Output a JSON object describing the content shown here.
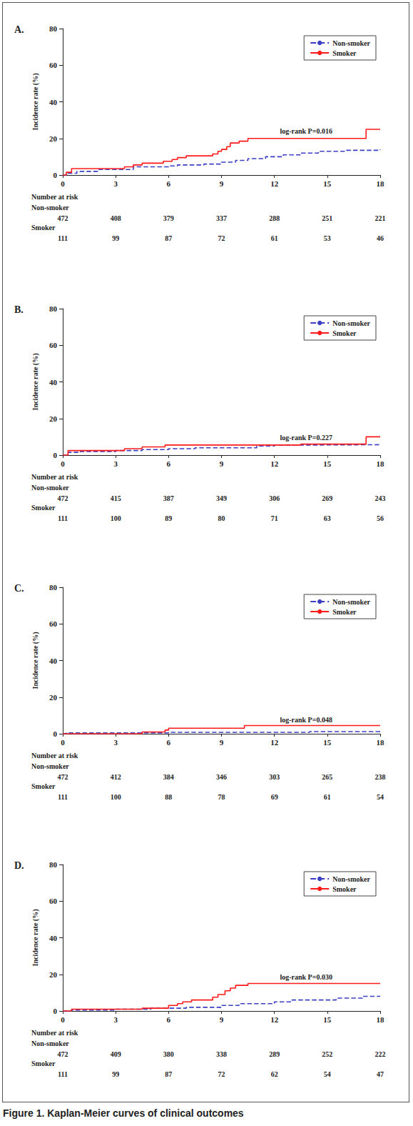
{
  "chart_data": [
    {
      "type": "line",
      "title": "A.",
      "y_label": "Incidence rate (%)",
      "annotation": "log-rank P=0.016",
      "legend": "upper right",
      "xlim": [
        0,
        18
      ],
      "xticks": [
        0,
        3,
        6,
        9,
        12,
        15,
        18
      ],
      "ylim": [
        0,
        80
      ],
      "yticks": [
        0,
        20,
        40,
        60,
        80
      ],
      "series": [
        {
          "name": "Non-smoker",
          "color": "#3a3fc4",
          "line_style": "dashed",
          "x": [
            0,
            0.3,
            0.8,
            2,
            4,
            6,
            6.5,
            8,
            9,
            9.8,
            10.5,
            11.5,
            12.5,
            13.5,
            14.5,
            16,
            18
          ],
          "values": [
            0,
            1,
            2,
            3,
            4.5,
            5,
            5.5,
            6,
            7,
            8,
            9,
            10,
            11,
            12,
            13,
            13.5,
            14
          ]
        },
        {
          "name": "Smoker",
          "color": "#ff1a1a",
          "line_style": "solid",
          "x": [
            0,
            0.2,
            0.5,
            3,
            3.5,
            4,
            4.5,
            5.7,
            6.2,
            6.5,
            7,
            8.5,
            8.8,
            9,
            9.3,
            9.5,
            10,
            10.5,
            17,
            17.2,
            18
          ],
          "values": [
            0,
            1.5,
            3.5,
            3.5,
            4.5,
            5.5,
            6.5,
            7.5,
            8.5,
            9.5,
            10.5,
            11.5,
            13,
            14,
            15.5,
            17.5,
            18.5,
            20,
            20,
            25,
            25
          ]
        }
      ],
      "number_at_risk": {
        "title": "Number at risk",
        "x": [
          0,
          3,
          6,
          9,
          12,
          15,
          18
        ],
        "rows": [
          {
            "name": "Non-smoker",
            "values": [
              472,
              408,
              379,
              337,
              288,
              251,
              221
            ]
          },
          {
            "name": "Smoker",
            "values": [
              111,
              99,
              87,
              72,
              61,
              53,
              46
            ]
          }
        ]
      }
    },
    {
      "type": "line",
      "title": "B.",
      "y_label": "Incidence rate (%)",
      "annotation": "log-rank P=0.227",
      "legend": "upper right",
      "xlim": [
        0,
        18
      ],
      "xticks": [
        0,
        3,
        6,
        9,
        12,
        15,
        18
      ],
      "ylim": [
        0,
        80
      ],
      "yticks": [
        0,
        20,
        40,
        60,
        80
      ],
      "series": [
        {
          "name": "Non-smoker",
          "color": "#3a3fc4",
          "line_style": "dashed",
          "x": [
            0,
            0.3,
            1,
            3,
            4.5,
            6,
            7.5,
            11,
            12,
            14,
            18
          ],
          "values": [
            0,
            1.5,
            2,
            2.5,
            3,
            3.5,
            4,
            5,
            5.5,
            5.7,
            5.8
          ]
        },
        {
          "name": "Smoker",
          "color": "#ff1a1a",
          "line_style": "solid",
          "x": [
            0,
            0.3,
            3,
            3.5,
            4.5,
            5.8,
            13.5,
            17.2,
            18
          ],
          "values": [
            0,
            2.5,
            2.5,
            3.5,
            4.5,
            5.5,
            6,
            10,
            10
          ]
        }
      ],
      "number_at_risk": {
        "title": "Number at risk",
        "x": [
          0,
          3,
          6,
          9,
          12,
          15,
          18
        ],
        "rows": [
          {
            "name": "Non-smoker",
            "values": [
              472,
              415,
              387,
              349,
              306,
              269,
              243
            ]
          },
          {
            "name": "Smoker",
            "values": [
              111,
              100,
              89,
              80,
              71,
              63,
              56
            ]
          }
        ]
      }
    },
    {
      "type": "line",
      "title": "C.",
      "y_label": "Incidence rate (%)",
      "annotation": "log-rank P=0.048",
      "legend": "upper right",
      "xlim": [
        0,
        18
      ],
      "xticks": [
        0,
        3,
        6,
        9,
        12,
        15,
        18
      ],
      "ylim": [
        0,
        80
      ],
      "yticks": [
        0,
        20,
        40,
        60,
        80
      ],
      "series": [
        {
          "name": "Non-smoker",
          "color": "#3a3fc4",
          "line_style": "dashed",
          "x": [
            0,
            0.2,
            6,
            14,
            18
          ],
          "values": [
            0,
            0.5,
            0.8,
            1.2,
            1.3
          ]
        },
        {
          "name": "Smoker",
          "color": "#ff1a1a",
          "line_style": "solid",
          "x": [
            0,
            4.5,
            5.8,
            6,
            10.3,
            18
          ],
          "values": [
            0,
            1,
            2,
            3,
            4.5,
            4.5
          ]
        }
      ],
      "number_at_risk": {
        "title": "Number at risk",
        "x": [
          0,
          3,
          6,
          9,
          12,
          15,
          18
        ],
        "rows": [
          {
            "name": "Non-smoker",
            "values": [
              472,
              412,
              384,
              346,
              303,
              265,
              238
            ]
          },
          {
            "name": "Smoker",
            "values": [
              111,
              100,
              88,
              78,
              69,
              61,
              54
            ]
          }
        ]
      }
    },
    {
      "type": "line",
      "title": "D.",
      "y_label": "Incidence rate (%)",
      "annotation": "log-rank P=0.030",
      "legend": "upper right",
      "xlim": [
        0,
        18
      ],
      "xticks": [
        0,
        3,
        6,
        9,
        12,
        15,
        18
      ],
      "ylim": [
        0,
        80
      ],
      "yticks": [
        0,
        20,
        40,
        60,
        80
      ],
      "series": [
        {
          "name": "Non-smoker",
          "color": "#3a3fc4",
          "line_style": "dashed",
          "x": [
            0,
            0.5,
            3,
            5,
            7,
            9,
            10,
            12,
            13,
            15.5,
            17,
            18
          ],
          "values": [
            0,
            0.5,
            1,
            1.5,
            2,
            3,
            4,
            5,
            6,
            7,
            8,
            8
          ]
        },
        {
          "name": "Smoker",
          "color": "#ff1a1a",
          "line_style": "solid",
          "x": [
            0,
            0.5,
            4.5,
            6,
            6.5,
            6.8,
            7.3,
            8.5,
            8.8,
            9.2,
            9.5,
            9.8,
            10.5,
            18
          ],
          "values": [
            0,
            1,
            1.5,
            3,
            4,
            5,
            6,
            7.5,
            9,
            11,
            12.5,
            14,
            15,
            15
          ]
        }
      ],
      "number_at_risk": {
        "title": "Number at risk",
        "x": [
          0,
          3,
          6,
          9,
          12,
          15,
          18
        ],
        "rows": [
          {
            "name": "Non-smoker",
            "values": [
              472,
              409,
              380,
              338,
              289,
              252,
              222
            ]
          },
          {
            "name": "Smoker",
            "values": [
              111,
              99,
              87,
              72,
              62,
              54,
              47
            ]
          }
        ]
      }
    }
  ],
  "caption": "Figure 1. Kaplan-Meier curves of clinical outcomes"
}
